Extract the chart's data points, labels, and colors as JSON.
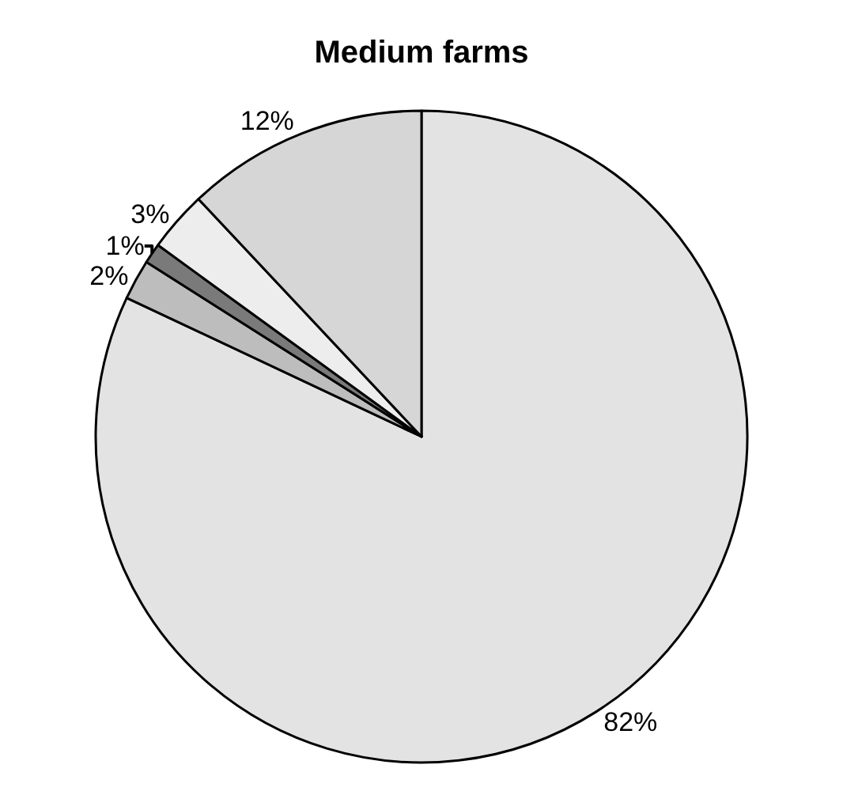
{
  "chart_data": {
    "type": "pie",
    "title": "Medium farms",
    "categories": [
      null,
      null,
      null,
      null,
      null
    ],
    "values": [
      82,
      2,
      1,
      3,
      12
    ],
    "value_labels": [
      "82%",
      "2%",
      "1%",
      "3%",
      "12%"
    ],
    "colors": [
      "#e3e3e3",
      "#bdbdbd",
      "#7a7a7a",
      "#ededed",
      "#d6d6d6"
    ],
    "legend": false
  }
}
